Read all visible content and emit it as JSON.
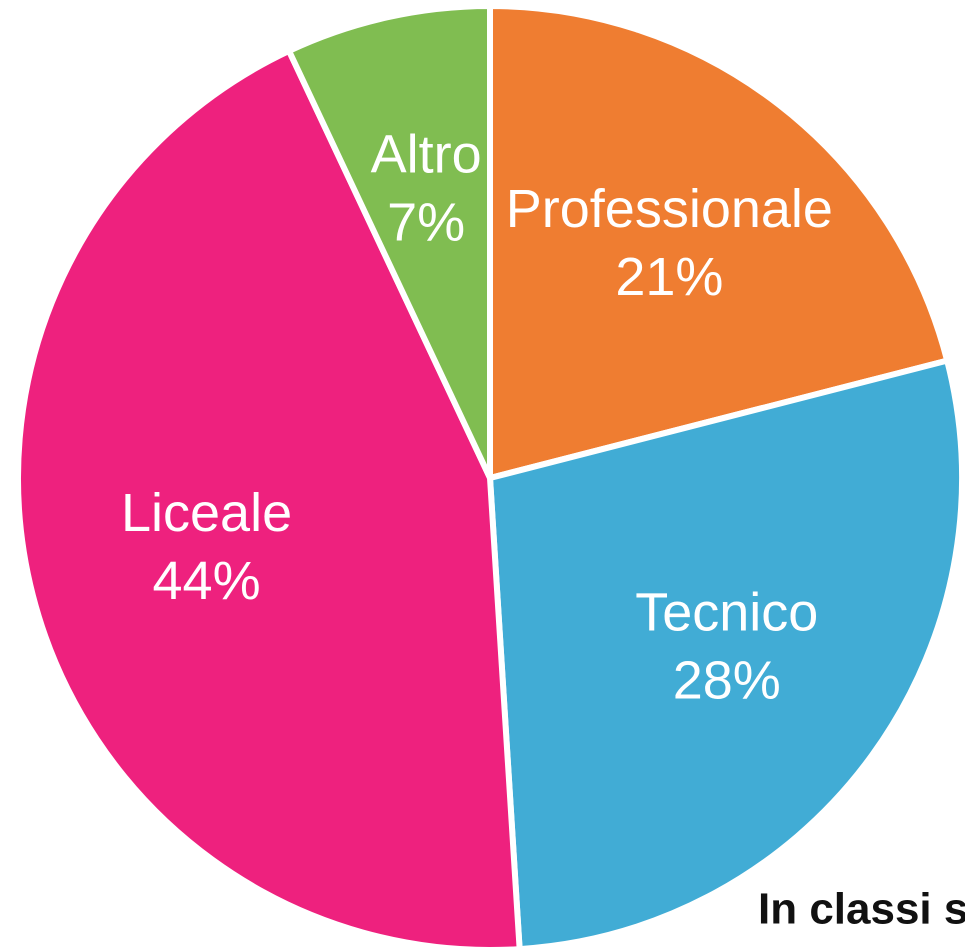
{
  "chart_data": {
    "type": "pie",
    "categories": [
      "Professionale",
      "Tecnico",
      "Liceale",
      "Altro"
    ],
    "values": [
      21,
      28,
      44,
      7
    ],
    "value_labels": [
      "21%",
      "28%",
      "44%",
      "7%"
    ],
    "colors": [
      "#ef7d31",
      "#41acd5",
      "#ee217e",
      "#80bd51"
    ],
    "annotation": "In classi sp"
  }
}
